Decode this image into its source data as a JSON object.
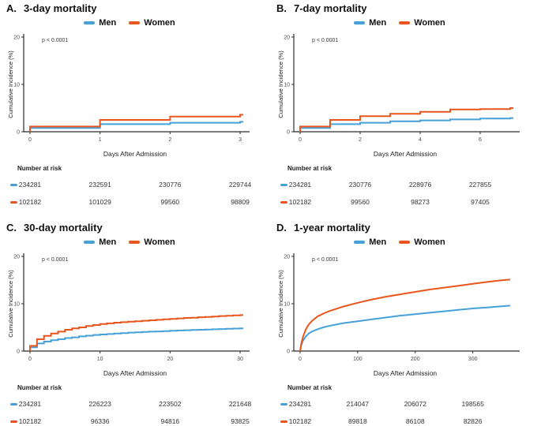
{
  "figure": {
    "legend": {
      "men_label": "Men",
      "women_label": "Women"
    },
    "colors": {
      "men": "#45A1D8",
      "women": "#E9561D",
      "axis": "#2b2b2b"
    }
  },
  "chart_data": [
    {
      "panel_label": "A.",
      "title": "3-day mortality",
      "pvalue": "p < 0.0001",
      "type": "line",
      "curve": "step",
      "xlabel": "Days After Admission",
      "ylabel": "Cumulative Incidence (%)",
      "xlim": [
        0,
        3
      ],
      "ylim": [
        0,
        20
      ],
      "x_ticks": [
        0,
        1,
        2,
        3
      ],
      "y_ticks": [
        0,
        10,
        20
      ],
      "grid": false,
      "legend_position": "top",
      "series": [
        {
          "name": "Men",
          "color_key": "men",
          "x": [
            0,
            1,
            2,
            3
          ],
          "y": [
            0.8,
            1.6,
            1.9,
            2.1
          ]
        },
        {
          "name": "Women",
          "color_key": "women",
          "x": [
            0,
            1,
            2,
            3
          ],
          "y": [
            1.1,
            2.5,
            3.2,
            3.6
          ]
        }
      ],
      "number_at_risk": {
        "label": "Number at risk",
        "times": [
          0,
          1,
          2,
          3
        ],
        "rows": [
          {
            "name": "Men",
            "color_key": "men",
            "values": [
              "234281",
              "232591",
              "230776",
              "229744"
            ]
          },
          {
            "name": "Women",
            "color_key": "women",
            "values": [
              "102182",
              "101029",
              "99560",
              "98809"
            ]
          }
        ]
      }
    },
    {
      "panel_label": "B.",
      "title": "7-day mortality",
      "pvalue": "p < 0.0001",
      "type": "line",
      "curve": "step",
      "xlabel": "Days After Admission",
      "ylabel": "Cumulative Incidence (%)",
      "xlim": [
        0,
        7
      ],
      "ylim": [
        0,
        20
      ],
      "x_ticks": [
        0,
        2,
        4,
        6
      ],
      "y_ticks": [
        0,
        10,
        20
      ],
      "grid": false,
      "legend_position": "top",
      "series": [
        {
          "name": "Men",
          "color_key": "men",
          "x": [
            0,
            1,
            2,
            3,
            4,
            5,
            6,
            7
          ],
          "y": [
            0.8,
            1.6,
            1.9,
            2.2,
            2.4,
            2.6,
            2.8,
            2.9
          ]
        },
        {
          "name": "Women",
          "color_key": "women",
          "x": [
            0,
            1,
            2,
            3,
            4,
            5,
            6,
            7
          ],
          "y": [
            1.1,
            2.5,
            3.3,
            3.8,
            4.2,
            4.7,
            4.8,
            5.0
          ]
        }
      ],
      "number_at_risk": {
        "label": "Number at risk",
        "times": [
          0,
          2,
          4,
          6
        ],
        "rows": [
          {
            "name": "Men",
            "color_key": "men",
            "values": [
              "234281",
              "230776",
              "228976",
              "227855"
            ]
          },
          {
            "name": "Women",
            "color_key": "women",
            "values": [
              "102182",
              "99560",
              "98273",
              "97405"
            ]
          }
        ]
      }
    },
    {
      "panel_label": "C.",
      "title": "30-day mortality",
      "pvalue": "p < 0.0001",
      "type": "line",
      "curve": "step",
      "xlabel": "Days After Admission",
      "ylabel": "Cumulative Incidence (%)",
      "xlim": [
        0,
        30
      ],
      "ylim": [
        0,
        20
      ],
      "x_ticks": [
        0,
        10,
        20,
        30
      ],
      "y_ticks": [
        0,
        10,
        20
      ],
      "grid": false,
      "legend_position": "top",
      "series": [
        {
          "name": "Men",
          "color_key": "men",
          "x": [
            0,
            1,
            2,
            3,
            4,
            5,
            6,
            7,
            8,
            9,
            10,
            11,
            12,
            13,
            14,
            15,
            16,
            17,
            18,
            19,
            20,
            21,
            22,
            23,
            24,
            25,
            26,
            27,
            28,
            29,
            30
          ],
          "y": [
            0.8,
            1.6,
            2.0,
            2.3,
            2.5,
            2.75,
            2.9,
            3.1,
            3.25,
            3.4,
            3.5,
            3.6,
            3.7,
            3.8,
            3.9,
            3.95,
            4.05,
            4.1,
            4.15,
            4.2,
            4.3,
            4.35,
            4.4,
            4.45,
            4.5,
            4.55,
            4.6,
            4.65,
            4.7,
            4.75,
            4.8
          ]
        },
        {
          "name": "Women",
          "color_key": "women",
          "x": [
            0,
            1,
            2,
            3,
            4,
            5,
            6,
            7,
            8,
            9,
            10,
            11,
            12,
            13,
            14,
            15,
            16,
            17,
            18,
            19,
            20,
            21,
            22,
            23,
            24,
            25,
            26,
            27,
            28,
            29,
            30
          ],
          "y": [
            1.1,
            2.5,
            3.2,
            3.7,
            4.1,
            4.5,
            4.8,
            5.0,
            5.3,
            5.5,
            5.7,
            5.85,
            6.0,
            6.1,
            6.2,
            6.3,
            6.4,
            6.5,
            6.6,
            6.7,
            6.8,
            6.9,
            7.0,
            7.05,
            7.15,
            7.2,
            7.3,
            7.4,
            7.45,
            7.55,
            7.6
          ]
        }
      ],
      "number_at_risk": {
        "label": "Number at risk",
        "times": [
          0,
          10,
          20,
          30
        ],
        "rows": [
          {
            "name": "Men",
            "color_key": "men",
            "values": [
              "234281",
              "226223",
              "223502",
              "221648"
            ]
          },
          {
            "name": "Women",
            "color_key": "women",
            "values": [
              "102182",
              "96336",
              "94816",
              "93825"
            ]
          }
        ]
      }
    },
    {
      "panel_label": "D.",
      "title": "1-year mortality",
      "pvalue": "p < 0.0001",
      "type": "line",
      "curve": "smooth",
      "xlabel": "Days After Admission",
      "ylabel": "Cumulative Incidence (%)",
      "xlim": [
        0,
        365
      ],
      "ylim": [
        0,
        20
      ],
      "x_ticks": [
        0,
        100,
        200,
        300
      ],
      "y_ticks": [
        0,
        10,
        20
      ],
      "grid": false,
      "legend_position": "top",
      "series": [
        {
          "name": "Men",
          "color_key": "men",
          "x": [
            0,
            2,
            5,
            10,
            15,
            20,
            30,
            40,
            50,
            75,
            100,
            125,
            150,
            175,
            200,
            225,
            250,
            275,
            300,
            325,
            350,
            365
          ],
          "y": [
            0,
            1.2,
            2.2,
            3.1,
            3.7,
            4.1,
            4.6,
            5.0,
            5.3,
            5.9,
            6.3,
            6.7,
            7.1,
            7.5,
            7.8,
            8.1,
            8.4,
            8.7,
            9.0,
            9.2,
            9.45,
            9.6
          ]
        },
        {
          "name": "Women",
          "color_key": "women",
          "x": [
            0,
            2,
            5,
            10,
            15,
            20,
            30,
            40,
            50,
            75,
            100,
            125,
            150,
            175,
            200,
            225,
            250,
            275,
            300,
            325,
            350,
            365
          ],
          "y": [
            0,
            1.5,
            3.0,
            4.6,
            5.6,
            6.3,
            7.3,
            7.9,
            8.4,
            9.4,
            10.2,
            10.9,
            11.5,
            12.0,
            12.5,
            13.0,
            13.4,
            13.8,
            14.2,
            14.6,
            14.95,
            15.1
          ]
        }
      ],
      "number_at_risk": {
        "label": "Number at risk",
        "times": [
          0,
          100,
          200,
          300
        ],
        "rows": [
          {
            "name": "Men",
            "color_key": "men",
            "values": [
              "234281",
              "214047",
              "206072",
              "198565"
            ]
          },
          {
            "name": "Women",
            "color_key": "women",
            "values": [
              "102182",
              "89818",
              "86108",
              "82826"
            ]
          }
        ]
      }
    }
  ]
}
